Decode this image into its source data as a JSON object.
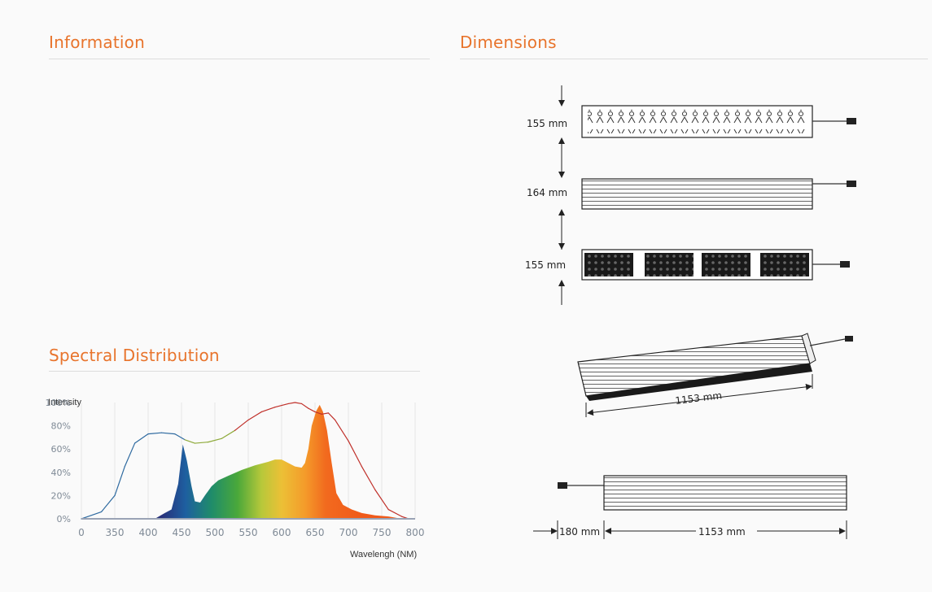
{
  "information": {
    "title": "Information"
  },
  "dimensions": {
    "title": "Dimensions",
    "labels": {
      "top_view_width": "155 mm",
      "side_view_height": "164 mm",
      "bottom_view_width": "155 mm",
      "length": "1153 mm",
      "cable_length": "180 mm",
      "length_2": "1153 mm"
    }
  },
  "spectral": {
    "title": "Spectral Distribution",
    "chart_data": {
      "type": "area",
      "ylabel": "Intensity",
      "xlabel": "Wavelengh (NM)",
      "xlim": [
        300,
        800
      ],
      "ylim": [
        0,
        100
      ],
      "x_ticks": [
        "0",
        "350",
        "400",
        "450",
        "500",
        "550",
        "600",
        "650",
        "700",
        "750",
        "800"
      ],
      "y_ticks": [
        "0%",
        "20%",
        "40%",
        "60%",
        "80%",
        "100%"
      ],
      "grid": true,
      "series": [
        {
          "color": "#2a5a8a",
          "points": [
            [
              300,
              0
            ],
            [
              330,
              6
            ],
            [
              350,
              20
            ],
            [
              365,
              45
            ],
            [
              380,
              65
            ],
            [
              400,
              73
            ],
            [
              420,
              74
            ],
            [
              440,
              73
            ],
            [
              455,
              68
            ],
            [
              470,
              65
            ],
            [
              490,
              66
            ],
            [
              510,
              69
            ],
            [
              530,
              76
            ],
            [
              550,
              85
            ],
            [
              570,
              92
            ],
            [
              590,
              96
            ],
            [
              610,
              99
            ],
            [
              620,
              100
            ],
            [
              630,
              99
            ],
            [
              640,
              95
            ],
            [
              650,
              92
            ],
            [
              660,
              90
            ],
            [
              670,
              91
            ],
            [
              680,
              85
            ],
            [
              700,
              67
            ],
            [
              720,
              45
            ],
            [
              740,
              25
            ],
            [
              760,
              8
            ],
            [
              780,
              2
            ],
            [
              790,
              0
            ]
          ]
        },
        {
          "color": "#f07020",
          "points": [
            [
              410,
              0
            ],
            [
              425,
              5
            ],
            [
              435,
              8
            ],
            [
              445,
              30
            ],
            [
              452,
              64
            ],
            [
              458,
              50
            ],
            [
              465,
              28
            ],
            [
              470,
              15
            ],
            [
              478,
              14
            ],
            [
              485,
              20
            ],
            [
              495,
              28
            ],
            [
              505,
              33
            ],
            [
              520,
              37
            ],
            [
              540,
              42
            ],
            [
              560,
              46
            ],
            [
              580,
              49
            ],
            [
              590,
              51
            ],
            [
              600,
              51
            ],
            [
              610,
              48
            ],
            [
              620,
              45
            ],
            [
              630,
              44
            ],
            [
              635,
              48
            ],
            [
              640,
              60
            ],
            [
              645,
              80
            ],
            [
              652,
              93
            ],
            [
              657,
              98
            ],
            [
              662,
              92
            ],
            [
              668,
              76
            ],
            [
              675,
              48
            ],
            [
              682,
              22
            ],
            [
              692,
              12
            ],
            [
              705,
              8
            ],
            [
              720,
              5
            ],
            [
              740,
              3
            ],
            [
              760,
              2
            ],
            [
              780,
              0
            ]
          ]
        }
      ]
    }
  }
}
